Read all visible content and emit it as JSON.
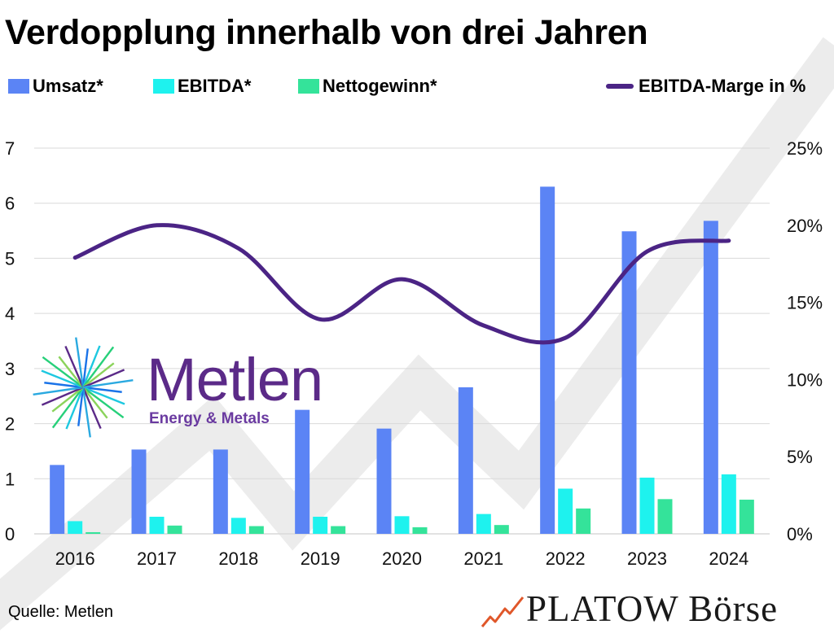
{
  "title": "Verdopplung innerhalb von drei Jahren",
  "legend": {
    "umsatz": "Umsatz*",
    "ebitda": "EBITDA*",
    "netto": "Nettogewinn*",
    "marge": "EBITDA-Marge in %"
  },
  "colors": {
    "umsatz": "#5b84f5",
    "ebitda": "#1ef2ee",
    "netto": "#34e39a",
    "marge": "#4b2485",
    "grid": "#d9d9d9",
    "watermark": "#ececec"
  },
  "chart_data": {
    "type": "bar",
    "categories": [
      "2016",
      "2017",
      "2018",
      "2019",
      "2020",
      "2021",
      "2022",
      "2023",
      "2024"
    ],
    "series": [
      {
        "name": "Umsatz*",
        "values": [
          1.25,
          1.53,
          1.53,
          2.25,
          1.91,
          2.66,
          6.3,
          5.49,
          5.68
        ]
      },
      {
        "name": "EBITDA*",
        "values": [
          0.23,
          0.31,
          0.29,
          0.31,
          0.32,
          0.36,
          0.82,
          1.02,
          1.08
        ]
      },
      {
        "name": "Nettogewinn*",
        "values": [
          0.03,
          0.15,
          0.14,
          0.14,
          0.12,
          0.16,
          0.46,
          0.63,
          0.62
        ]
      }
    ],
    "line_series": {
      "name": "EBITDA-Marge in %",
      "values": [
        17.9,
        20.0,
        18.5,
        13.9,
        16.5,
        13.5,
        12.7,
        18.3,
        19.0
      ]
    },
    "ylim": [
      0,
      7
    ],
    "yticks": [
      "0",
      "1",
      "2",
      "3",
      "4",
      "5",
      "6",
      "7"
    ],
    "y2lim": [
      0,
      25
    ],
    "y2ticks": [
      "0%",
      "5%",
      "10%",
      "15%",
      "20%",
      "25%"
    ],
    "grid": true,
    "legend_position": "top"
  },
  "logo": {
    "name": "Metlen",
    "subtitle": "Energy & Metals"
  },
  "source": "Quelle: Metlen",
  "brand": "PLATOW Börse"
}
